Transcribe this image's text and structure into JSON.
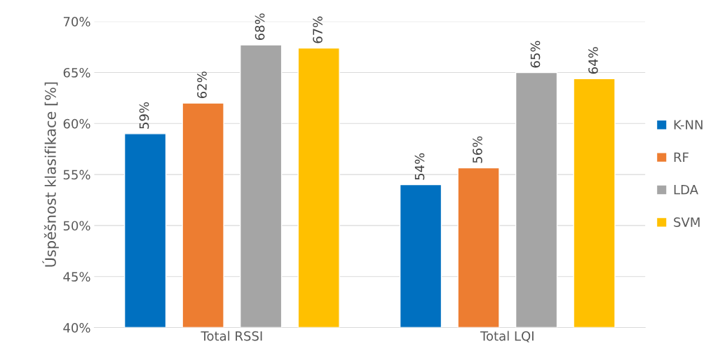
{
  "chart_data": {
    "type": "bar",
    "ylabel": "Úspěšnost klasifikace [%]",
    "categories": [
      "Total RSSI",
      "Total LQI"
    ],
    "series": [
      {
        "name": "K-NN",
        "color": "#0070c0",
        "values": [
          59.0,
          54.0
        ],
        "value_labels": [
          "59%",
          "54%"
        ]
      },
      {
        "name": "RF",
        "color": "#ed7d31",
        "values": [
          62.0,
          55.65
        ],
        "value_labels": [
          "62%",
          "56%"
        ]
      },
      {
        "name": "LDA",
        "color": "#a5a5a5",
        "values": [
          67.7,
          65.0
        ],
        "value_labels": [
          "68%",
          "65%"
        ]
      },
      {
        "name": "SVM",
        "color": "#ffc000",
        "values": [
          67.4,
          64.4
        ],
        "value_labels": [
          "67%",
          "64%"
        ]
      }
    ],
    "ylim": [
      40,
      70
    ],
    "yticks": [
      {
        "value": 40,
        "label": "40%"
      },
      {
        "value": 45,
        "label": "45%"
      },
      {
        "value": 50,
        "label": "50%"
      },
      {
        "value": 55,
        "label": "55%"
      },
      {
        "value": 60,
        "label": "60%"
      },
      {
        "value": 65,
        "label": "65%"
      },
      {
        "value": 70,
        "label": "70%"
      }
    ],
    "grid": "y",
    "legend": "right"
  }
}
